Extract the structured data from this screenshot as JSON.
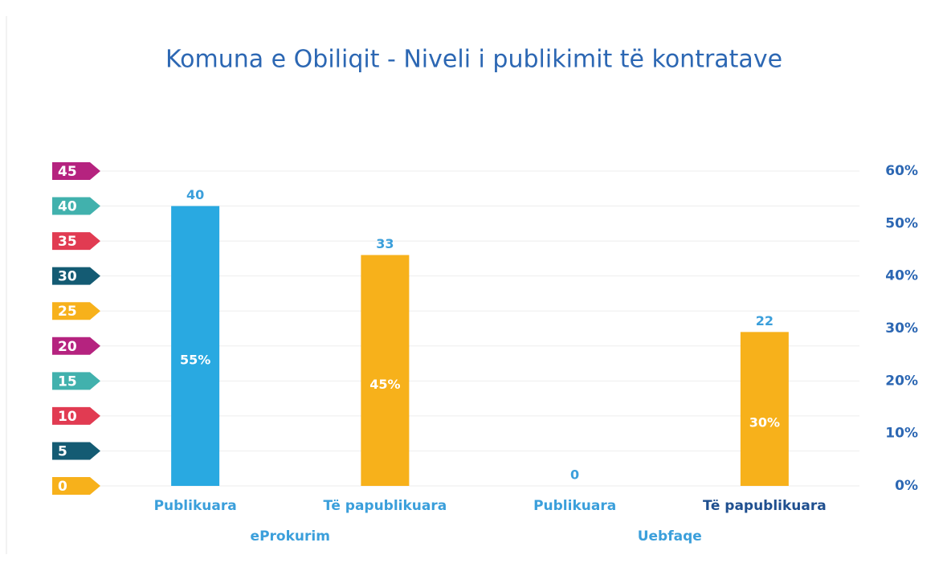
{
  "chart_data": {
    "type": "bar",
    "title": "Komuna e Obiliqit - Niveli i publikimit të kontratave",
    "categories": [
      "Publikuara",
      "Të papublikuara",
      "Publikuara",
      "Të papublikuara"
    ],
    "category_colors": [
      "#3b9fdb",
      "#3b9fdb",
      "#3b9fdb",
      "#1f4f8f"
    ],
    "groups": [
      {
        "name": "eProkurim",
        "size": 2
      },
      {
        "name": "Uebfaqe",
        "size": 2
      }
    ],
    "values": [
      40,
      33,
      0,
      22
    ],
    "colors": [
      "#29a9e1",
      "#f7b11b",
      "#29a9e1",
      "#f7b11b"
    ],
    "share_labels": [
      "55%",
      "45%",
      null,
      "30%"
    ],
    "ylim": [
      0,
      45
    ],
    "yticks": [
      0,
      5,
      10,
      15,
      20,
      25,
      30,
      35,
      40,
      45
    ],
    "ytick_colors": [
      "#f7b11b",
      "#145b73",
      "#e13b52",
      "#41b1ad",
      "#b5237f",
      "#f7b11b",
      "#145b73",
      "#e13b52",
      "#41b1ad",
      "#b5237f"
    ],
    "y2lim": [
      0,
      60
    ],
    "y2ticks": [
      {
        "value": 0,
        "label": "0%"
      },
      {
        "value": 10,
        "label": "10%"
      },
      {
        "value": 20,
        "label": "20%"
      },
      {
        "value": 30,
        "label": "30%"
      },
      {
        "value": 40,
        "label": "40%"
      },
      {
        "value": 50,
        "label": "50%"
      },
      {
        "value": 60,
        "label": "60%"
      }
    ],
    "grid": true
  }
}
